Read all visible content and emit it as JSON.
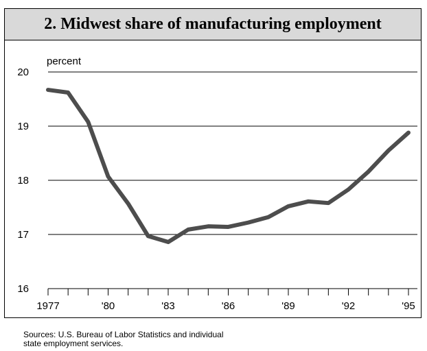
{
  "chart_data": {
    "type": "line",
    "title": "2. Midwest share of manufacturing employment",
    "ylabel": "percent",
    "xlabel": "",
    "ylim": [
      16,
      20
    ],
    "yticks": [
      16,
      17,
      18,
      19,
      20
    ],
    "xlim": [
      1977,
      1995
    ],
    "xticks": [
      {
        "value": 1977,
        "label": "1977"
      },
      {
        "value": 1980,
        "label": "'80"
      },
      {
        "value": 1983,
        "label": "'83"
      },
      {
        "value": 1986,
        "label": "'86"
      },
      {
        "value": 1989,
        "label": "'89"
      },
      {
        "value": 1992,
        "label": "'92"
      },
      {
        "value": 1995,
        "label": "'95"
      }
    ],
    "grid": true,
    "series": [
      {
        "color": "#4d4d4d",
        "x": [
          1977,
          1978,
          1979,
          1980,
          1981,
          1982,
          1983,
          1984,
          1985,
          1986,
          1987,
          1988,
          1989,
          1990,
          1991,
          1992,
          1993,
          1994,
          1995
        ],
        "values": [
          19.67,
          19.62,
          19.08,
          18.07,
          17.57,
          16.97,
          16.86,
          17.09,
          17.15,
          17.14,
          17.22,
          17.32,
          17.52,
          17.61,
          17.58,
          17.83,
          18.16,
          18.55,
          18.88
        ]
      }
    ]
  },
  "footer": {
    "sources_line1": "Sources: U.S. Bureau of Labor Statistics and individual",
    "sources_line2": "state employment services."
  }
}
